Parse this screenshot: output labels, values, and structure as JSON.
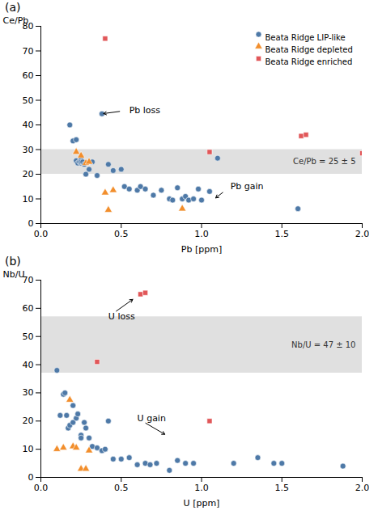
{
  "chart_data": [
    {
      "type": "scatter",
      "title": "(a)",
      "x_label": "Pb [ppm]",
      "y_label": "Ce/Pb",
      "xlim": [
        0.0,
        2.0
      ],
      "ylim": [
        0,
        80
      ],
      "xticks": [
        {
          "value": 0.0,
          "label": "0.0"
        },
        0.5,
        {
          "value": 1.0,
          "label": "1.0"
        },
        1.5,
        {
          "value": 2.0,
          "label": "2.0"
        }
      ],
      "yticks": [
        0,
        10,
        20,
        30,
        40,
        50,
        60,
        70,
        80
      ],
      "legend": "upper right",
      "band": {
        "from": 20,
        "to": 30,
        "label": "Ce/Pb = 25 ± 5"
      },
      "annotations": [
        {
          "text": "Pb loss",
          "xy": [
            0.38,
            44.5
          ],
          "xytext": [
            0.55,
            46
          ]
        },
        {
          "text": "Pb gain",
          "xy": [
            1.08,
            10
          ],
          "xytext": [
            1.18,
            15
          ]
        }
      ],
      "series": [
        {
          "name": "Beata Ridge LIP-like",
          "marker": "circle",
          "x": [
            0.18,
            0.2,
            0.22,
            0.22,
            0.23,
            0.24,
            0.25,
            0.25,
            0.25,
            0.26,
            0.27,
            0.28,
            0.3,
            0.32,
            0.35,
            0.38,
            0.42,
            0.45,
            0.5,
            0.52,
            0.55,
            0.6,
            0.62,
            0.65,
            0.7,
            0.75,
            0.8,
            0.82,
            0.85,
            0.88,
            0.9,
            0.92,
            0.95,
            0.98,
            1.0,
            1.05,
            1.1,
            1.6
          ],
          "y": [
            40.0,
            33.5,
            34.0,
            25.5,
            24.5,
            25.0,
            24.5,
            26.0,
            25.0,
            25.0,
            24.0,
            20.0,
            22.0,
            25.0,
            19.5,
            44.5,
            24.0,
            21.5,
            22.0,
            15.0,
            14.0,
            13.5,
            15.0,
            14.0,
            11.5,
            13.5,
            10.0,
            9.5,
            14.5,
            10.0,
            11.0,
            9.5,
            10.0,
            14.0,
            9.5,
            13.0,
            26.5,
            6.0
          ]
        },
        {
          "name": "Beata Ridge depleted",
          "marker": "triangle",
          "x": [
            0.22,
            0.25,
            0.28,
            0.3,
            0.4,
            0.42,
            0.45,
            0.88
          ],
          "y": [
            29.0,
            27.5,
            24.5,
            25.0,
            12.5,
            5.5,
            13.5,
            6.0
          ]
        },
        {
          "name": "Beata Ridge enriched",
          "marker": "square",
          "x": [
            0.4,
            1.05,
            1.62,
            1.65,
            2.0
          ],
          "y": [
            75.0,
            29.0,
            35.5,
            36.0,
            28.5
          ]
        }
      ]
    },
    {
      "type": "scatter",
      "title": "(b)",
      "x_label": "U [ppm]",
      "y_label": "Nb/U",
      "xlim": [
        0.0,
        2.0
      ],
      "ylim": [
        0,
        70
      ],
      "xticks": [
        {
          "value": 0.0,
          "label": "0.0"
        },
        0.5,
        {
          "value": 1.0,
          "label": "1.0"
        },
        1.5,
        {
          "value": 2.0,
          "label": "2.0"
        }
      ],
      "yticks": [
        0,
        10,
        20,
        30,
        40,
        50,
        60,
        70
      ],
      "band": {
        "from": 37,
        "to": 57,
        "label": "Nb/U = 47 ± 10"
      },
      "annotations": [
        {
          "text": "U loss",
          "xy": [
            0.58,
            63.5
          ],
          "xytext": [
            0.42,
            57
          ]
        },
        {
          "text": "U gain",
          "xy": [
            0.78,
            15
          ],
          "xytext": [
            0.6,
            21
          ]
        }
      ],
      "series": [
        {
          "marker": "circle",
          "x": [
            0.1,
            0.12,
            0.14,
            0.15,
            0.16,
            0.17,
            0.18,
            0.2,
            0.2,
            0.22,
            0.23,
            0.25,
            0.25,
            0.27,
            0.28,
            0.3,
            0.32,
            0.35,
            0.38,
            0.4,
            0.42,
            0.45,
            0.5,
            0.55,
            0.6,
            0.65,
            0.68,
            0.72,
            0.8,
            0.85,
            0.9,
            0.95,
            1.2,
            1.35,
            1.45,
            1.5,
            1.88
          ],
          "y": [
            38.0,
            22.0,
            29.5,
            30.0,
            22.0,
            17.5,
            18.5,
            25.5,
            19.5,
            21.0,
            22.5,
            15.0,
            14.0,
            19.5,
            17.5,
            14.0,
            11.0,
            10.5,
            9.5,
            10.0,
            20.0,
            6.5,
            6.5,
            7.0,
            4.5,
            5.0,
            4.5,
            5.0,
            2.5,
            6.0,
            5.0,
            5.0,
            5.0,
            7.0,
            5.0,
            5.0,
            4.0
          ]
        },
        {
          "marker": "triangle",
          "x": [
            0.1,
            0.14,
            0.18,
            0.2,
            0.22,
            0.25,
            0.28,
            0.3
          ],
          "y": [
            10.0,
            10.5,
            27.5,
            11.0,
            10.5,
            3.0,
            3.0,
            9.5
          ]
        },
        {
          "marker": "square",
          "x": [
            0.35,
            0.62,
            0.65,
            1.05
          ],
          "y": [
            41.0,
            65.0,
            65.5,
            20.0
          ]
        }
      ]
    }
  ]
}
